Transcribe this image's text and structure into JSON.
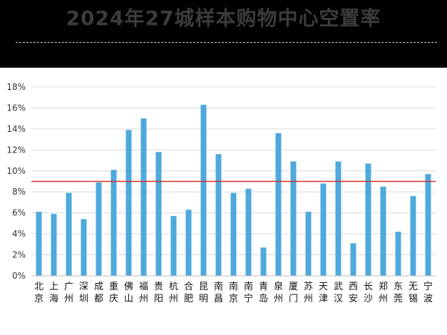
{
  "header": {
    "title": "2024年27城样本购物中心空置率"
  },
  "chart_data": {
    "type": "bar",
    "categories": [
      "北京",
      "上海",
      "广州",
      "深圳",
      "成都",
      "重庆",
      "佛山",
      "福州",
      "贵阳",
      "杭州",
      "合肥",
      "昆明",
      "南昌",
      "南京",
      "南宁",
      "青岛",
      "泉州",
      "厦门",
      "苏州",
      "天津",
      "武汉",
      "西安",
      "长沙",
      "郑州",
      "东莞",
      "无锡",
      "宁波"
    ],
    "values": [
      6.1,
      5.9,
      7.9,
      5.4,
      8.9,
      10.1,
      13.9,
      15.0,
      11.8,
      5.7,
      6.3,
      16.3,
      11.6,
      7.9,
      8.3,
      2.7,
      13.6,
      10.9,
      6.1,
      8.8,
      10.9,
      3.1,
      10.7,
      8.5,
      4.2,
      7.6,
      9.7
    ],
    "reference_line": 9,
    "ylim": [
      0,
      18
    ],
    "yticks": [
      "0%",
      "2%",
      "4%",
      "6%",
      "8%",
      "10%",
      "12%",
      "14%",
      "16%",
      "18%"
    ],
    "title": "2024年27城样本购物中心空置率",
    "xlabel": "",
    "ylabel": "",
    "grid": true,
    "colors": {
      "bar": "#4ea9dc",
      "reference": "#d92b2b",
      "grid": "#d9d9d9"
    }
  }
}
